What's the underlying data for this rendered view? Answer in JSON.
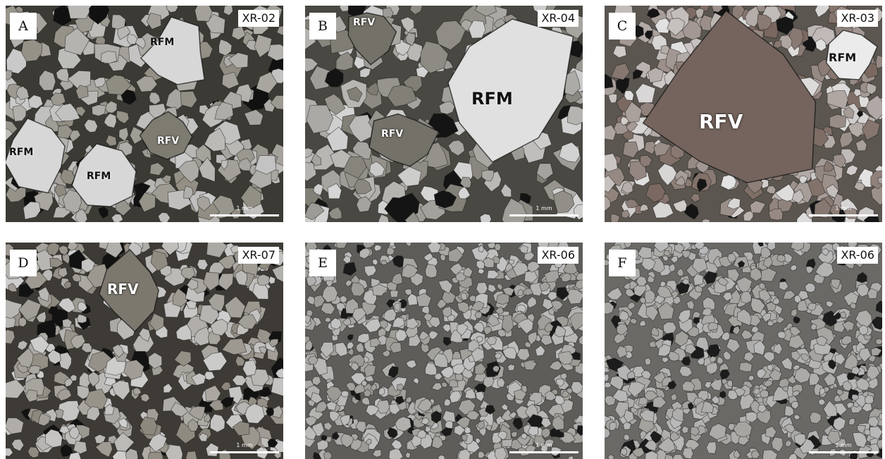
{
  "panels": [
    {
      "letter": "A",
      "sample": "XR-02",
      "scale": "1 mm",
      "palette": {
        "bg": "#3b3a34",
        "grain_light": "#c9c9c9",
        "grain_mid": "#8f8b80",
        "dark": "#111111"
      },
      "labels": [
        {
          "text": "RFM",
          "tone": "dark"
        },
        {
          "text": "RFV",
          "tone": "light"
        },
        {
          "text": "RFM",
          "tone": "dark"
        },
        {
          "text": "RFM",
          "tone": "dark"
        }
      ]
    },
    {
      "letter": "B",
      "sample": "XR-04",
      "scale": "1 mm",
      "palette": {
        "bg": "#4a4842",
        "grain_light": "#d6d6d6",
        "grain_mid": "#7e7b72",
        "dark": "#141414"
      },
      "labels": [
        {
          "text": "RFV",
          "tone": "light"
        },
        {
          "text": "RFM",
          "tone": "dark"
        },
        {
          "text": "RFV",
          "tone": "light"
        }
      ]
    },
    {
      "letter": "C",
      "sample": "XR-03",
      "scale": "1 mm",
      "palette": {
        "bg": "#5b5650",
        "grain_light": "#e4e4e4",
        "grain_mid": "#7a6860",
        "dark": "#151515"
      },
      "labels": [
        {
          "text": "RFM",
          "tone": "dark"
        },
        {
          "text": "RFV",
          "tone": "light"
        }
      ]
    },
    {
      "letter": "D",
      "sample": "XR-07",
      "scale": "1 mm",
      "palette": {
        "bg": "#3e3b36",
        "grain_light": "#cfcfcf",
        "grain_mid": "#8c877c",
        "dark": "#121212"
      },
      "labels": [
        {
          "text": "RFV",
          "tone": "light"
        }
      ]
    },
    {
      "letter": "E",
      "sample": "XR-06",
      "scale": "1 mm",
      "palette": {
        "bg": "#5e5d59",
        "grain_light": "#c3c3c3",
        "grain_mid": "#9c9a94",
        "dark": "#1a1a1a"
      },
      "labels": []
    },
    {
      "letter": "F",
      "sample": "XR-06",
      "scale": "1 mm",
      "palette": {
        "bg": "#6a6966",
        "grain_light": "#b9b9b9",
        "grain_mid": "#a2a09b",
        "dark": "#1c1c1c"
      },
      "labels": []
    }
  ]
}
